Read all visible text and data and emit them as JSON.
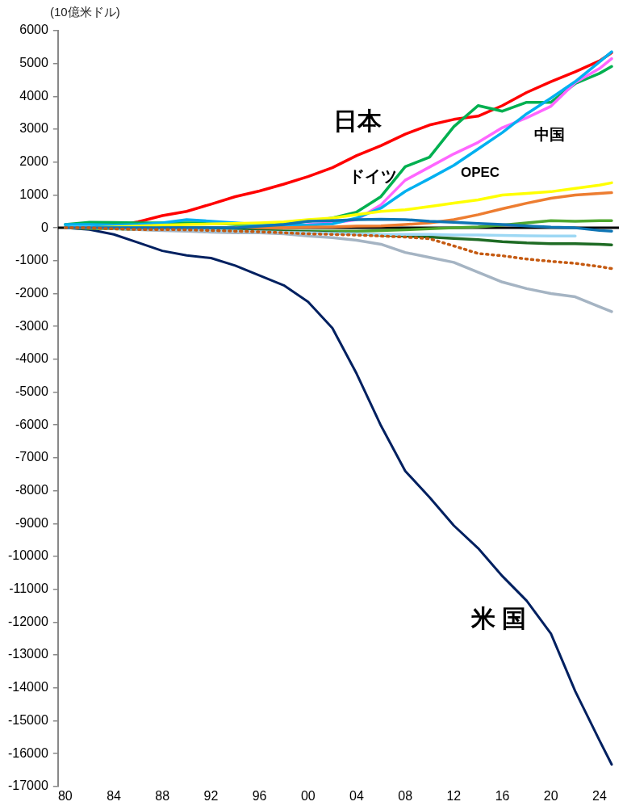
{
  "chart_data": {
    "type": "line",
    "ylabel": "(10億米ドル)",
    "x": [
      1980,
      1982,
      1984,
      1986,
      1988,
      1990,
      1992,
      1994,
      1996,
      1998,
      2000,
      2002,
      2004,
      2006,
      2008,
      2010,
      2012,
      2014,
      2016,
      2018,
      2020,
      2022,
      2024,
      2025
    ],
    "xlim": [
      1979.4,
      2025.6
    ],
    "xticks": [
      {
        "value": 1980,
        "label": "80"
      },
      {
        "value": 1984,
        "label": "84"
      },
      {
        "value": 1988,
        "label": "88"
      },
      {
        "value": 1992,
        "label": "92"
      },
      {
        "value": 1996,
        "label": "96"
      },
      {
        "value": 2000,
        "label": "00"
      },
      {
        "value": 2004,
        "label": "04"
      },
      {
        "value": 2008,
        "label": "08"
      },
      {
        "value": 2012,
        "label": "12"
      },
      {
        "value": 2016,
        "label": "16"
      },
      {
        "value": 2020,
        "label": "20"
      },
      {
        "value": 2024,
        "label": "24"
      }
    ],
    "ylim": [
      -17000,
      6000
    ],
    "yticks": [
      -17000,
      -16000,
      -15000,
      -14000,
      -13000,
      -12000,
      -11000,
      -10000,
      -9000,
      -8000,
      -7000,
      -6000,
      -5000,
      -4000,
      -3000,
      -2000,
      -1000,
      0,
      1000,
      2000,
      3000,
      4000,
      5000,
      6000
    ],
    "grid": false,
    "legend": false,
    "marker": "none",
    "ref_lines": [
      {
        "axis": "y",
        "value": 0,
        "color": "#000000"
      }
    ],
    "series": [
      {
        "name": "日本",
        "color": "#ff0000",
        "values": [
          null,
          null,
          50,
          180,
          370,
          500,
          720,
          950,
          1120,
          1330,
          1560,
          1830,
          2200,
          2500,
          2850,
          3130,
          3300,
          3400,
          3720,
          4120,
          4450,
          4750,
          5080,
          5330
        ]
      },
      {
        "name": "ドイツ",
        "color": "#00b050",
        "values": [
          100,
          170,
          160,
          150,
          150,
          150,
          150,
          100,
          100,
          150,
          200,
          300,
          480,
          950,
          1860,
          2150,
          3080,
          3720,
          3550,
          3820,
          3820,
          4390,
          4700,
          4910
        ]
      },
      {
        "name": "中国",
        "color": "#ff66ff",
        "values": [
          null,
          null,
          null,
          null,
          null,
          null,
          null,
          null,
          null,
          0,
          100,
          150,
          250,
          700,
          1450,
          1850,
          2250,
          2600,
          3050,
          3350,
          3700,
          4420,
          4850,
          5150
        ]
      },
      {
        "name": "OPEC",
        "color": "#00b0f0",
        "values": [
          100,
          100,
          80,
          100,
          150,
          250,
          200,
          150,
          100,
          80,
          80,
          120,
          300,
          600,
          1110,
          1500,
          1900,
          2400,
          2900,
          3470,
          3950,
          4450,
          5050,
          5360
        ]
      },
      {
        "name": "米 国",
        "color": "#002060",
        "values": [
          0,
          -50,
          -200,
          -450,
          -700,
          -840,
          -920,
          -1150,
          -1450,
          -1750,
          -2250,
          -3050,
          -4440,
          -6020,
          -7400,
          -8200,
          -9060,
          -9750,
          -10600,
          -11350,
          -12350,
          -14100,
          -15600,
          -16330
        ]
      },
      {
        "color": "#ffff00",
        "values": [
          0,
          0,
          30,
          50,
          80,
          100,
          120,
          130,
          150,
          180,
          250,
          300,
          400,
          500,
          550,
          650,
          750,
          850,
          1000,
          1050,
          1100,
          1200,
          1300,
          1370
        ]
      },
      {
        "color": "#ed7d31",
        "values": [
          null,
          null,
          null,
          null,
          null,
          null,
          null,
          0,
          0,
          0,
          20,
          30,
          50,
          60,
          100,
          150,
          250,
          400,
          580,
          750,
          900,
          1000,
          1050,
          1070
        ]
      },
      {
        "color": "#4ea72e",
        "values": [
          0,
          -20,
          -30,
          -50,
          -60,
          -80,
          -100,
          -100,
          -100,
          -100,
          -100,
          -100,
          -100,
          -80,
          -60,
          -30,
          0,
          30,
          80,
          150,
          220,
          200,
          220,
          220
        ]
      },
      {
        "color": "#1e6b24",
        "values": [
          0,
          0,
          0,
          0,
          -20,
          -30,
          -50,
          -50,
          -80,
          -100,
          -120,
          -150,
          -180,
          -220,
          -250,
          -280,
          -320,
          -360,
          -420,
          -460,
          -480,
          -480,
          -500,
          -520
        ]
      },
      {
        "color": "#c55a11",
        "line_style": "dotted",
        "values": [
          0,
          0,
          -30,
          -50,
          -50,
          -60,
          -80,
          -100,
          -120,
          -150,
          -180,
          -200,
          -220,
          -250,
          -280,
          -330,
          -550,
          -780,
          -850,
          -950,
          -1020,
          -1080,
          -1180,
          -1240
        ]
      },
      {
        "color": "#a5b4c3",
        "values": [
          0,
          0,
          -20,
          -50,
          -80,
          -100,
          -130,
          -150,
          -150,
          -180,
          -250,
          -300,
          -380,
          -500,
          -750,
          -900,
          -1050,
          -1350,
          -1650,
          -1850,
          -2000,
          -2100,
          -2400,
          -2550
        ]
      },
      {
        "color": "#9dd8f4",
        "values": [
          0,
          0,
          0,
          0,
          -30,
          -50,
          -80,
          -100,
          -120,
          -140,
          -150,
          -170,
          -180,
          -200,
          -200,
          -200,
          -220,
          -220,
          -230,
          -240,
          -250,
          -250,
          null,
          null
        ]
      },
      {
        "color": "#0f75b5",
        "values": [
          0,
          0,
          0,
          0,
          0,
          0,
          0,
          0,
          50,
          100,
          200,
          220,
          250,
          260,
          250,
          200,
          170,
          130,
          100,
          60,
          20,
          0,
          -80,
          -100
        ]
      }
    ]
  }
}
